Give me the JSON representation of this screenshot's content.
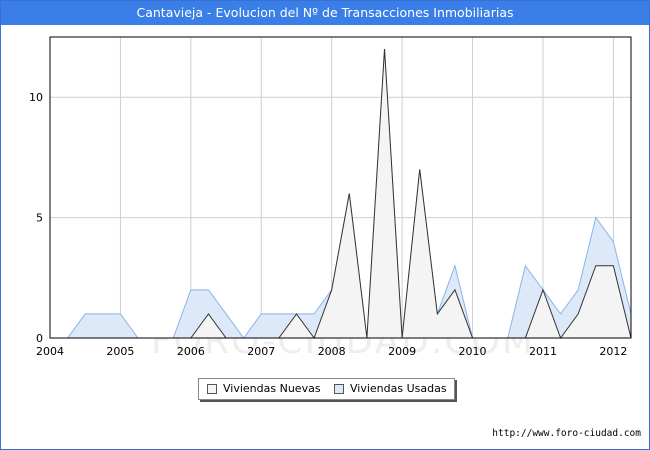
{
  "title": "Cantavieja - Evolucion del Nº de Transacciones Inmobiliarias",
  "watermark": "FORO-CIUDAD.COM",
  "source_url": "http://www.foro-ciudad.com",
  "colors": {
    "title_bg": "#3a7ee8",
    "nuevas_fill": "#f4f4f4",
    "nuevas_line": "#333333",
    "usadas_fill": "#dde9f9",
    "usadas_line": "#8ab4e8"
  },
  "legend": {
    "items": [
      {
        "label": "Viviendas Nuevas",
        "color": "#f4f4f4"
      },
      {
        "label": "Viviendas Usadas",
        "color": "#dde9f9"
      }
    ]
  },
  "chart_data": {
    "type": "area",
    "title": "Cantavieja - Evolucion del Nº de Transacciones Inmobiliarias",
    "xlabel": "",
    "ylabel": "",
    "xlim": [
      2004,
      2012.25
    ],
    "ylim": [
      0,
      12.5
    ],
    "x_ticks": [
      2004,
      2005,
      2006,
      2007,
      2008,
      2009,
      2010,
      2011,
      2012
    ],
    "y_ticks": [
      0,
      5,
      10
    ],
    "grid": true,
    "legend_position": "bottom",
    "series": [
      {
        "name": "Viviendas Usadas",
        "points": [
          [
            2004.25,
            0
          ],
          [
            2004.5,
            1
          ],
          [
            2004.75,
            1
          ],
          [
            2005.0,
            1
          ],
          [
            2005.25,
            0
          ],
          [
            2005.5,
            0
          ],
          [
            2005.75,
            0
          ],
          [
            2006.0,
            2
          ],
          [
            2006.25,
            2
          ],
          [
            2006.5,
            1
          ],
          [
            2006.75,
            0
          ],
          [
            2007.0,
            1
          ],
          [
            2007.25,
            1
          ],
          [
            2007.5,
            1
          ],
          [
            2007.75,
            1
          ],
          [
            2008.0,
            2
          ],
          [
            2008.25,
            6
          ],
          [
            2008.5,
            0
          ],
          [
            2008.75,
            12
          ],
          [
            2009.0,
            0
          ],
          [
            2009.25,
            7
          ],
          [
            2009.5,
            1
          ],
          [
            2009.75,
            3
          ],
          [
            2010.0,
            0
          ],
          [
            2010.25,
            0
          ],
          [
            2010.5,
            0
          ],
          [
            2010.75,
            3
          ],
          [
            2011.0,
            2
          ],
          [
            2011.25,
            1
          ],
          [
            2011.5,
            2
          ],
          [
            2011.75,
            5
          ],
          [
            2012.0,
            4
          ],
          [
            2012.25,
            1
          ]
        ]
      },
      {
        "name": "Viviendas Nuevas",
        "points": [
          [
            2004.25,
            0
          ],
          [
            2004.5,
            0
          ],
          [
            2004.75,
            0
          ],
          [
            2005.0,
            0
          ],
          [
            2005.25,
            0
          ],
          [
            2005.5,
            0
          ],
          [
            2005.75,
            0
          ],
          [
            2006.0,
            0
          ],
          [
            2006.25,
            1
          ],
          [
            2006.5,
            0
          ],
          [
            2006.75,
            0
          ],
          [
            2007.0,
            0
          ],
          [
            2007.25,
            0
          ],
          [
            2007.5,
            1
          ],
          [
            2007.75,
            0
          ],
          [
            2008.0,
            2
          ],
          [
            2008.25,
            6
          ],
          [
            2008.5,
            0
          ],
          [
            2008.75,
            12
          ],
          [
            2009.0,
            0
          ],
          [
            2009.25,
            7
          ],
          [
            2009.5,
            1
          ],
          [
            2009.75,
            2
          ],
          [
            2010.0,
            0
          ],
          [
            2010.25,
            0
          ],
          [
            2010.5,
            0
          ],
          [
            2010.75,
            0
          ],
          [
            2011.0,
            2
          ],
          [
            2011.25,
            0
          ],
          [
            2011.5,
            1
          ],
          [
            2011.75,
            3
          ],
          [
            2012.0,
            3
          ],
          [
            2012.25,
            0
          ]
        ]
      }
    ]
  }
}
